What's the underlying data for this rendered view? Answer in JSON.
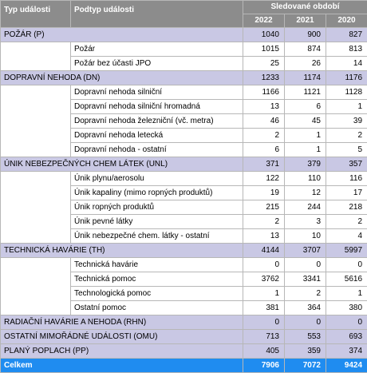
{
  "header": {
    "col_type": "Typ události",
    "col_subtype": "Podtyp události",
    "period": "Sledované období",
    "years": [
      "2022",
      "2021",
      "2020"
    ]
  },
  "rows": [
    {
      "kind": "cat",
      "name": "POŽÁR (P)",
      "values": [
        "1040",
        "900",
        "827"
      ]
    },
    {
      "kind": "sub",
      "name": "Požár",
      "values": [
        "1015",
        "874",
        "813"
      ]
    },
    {
      "kind": "sub",
      "name": "Požár bez účasti JPO",
      "values": [
        "25",
        "26",
        "14"
      ]
    },
    {
      "kind": "cat",
      "name": "DOPRAVNÍ NEHODA (DN)",
      "values": [
        "1233",
        "1174",
        "1176"
      ]
    },
    {
      "kind": "sub",
      "name": "Dopravní nehoda  silniční",
      "values": [
        "1166",
        "1121",
        "1128"
      ]
    },
    {
      "kind": "sub",
      "name": "Dopravní nehoda  silniční hromadná",
      "values": [
        "13",
        "6",
        "1"
      ]
    },
    {
      "kind": "sub",
      "name": "Dopravní nehoda  železniční (vč. metra)",
      "values": [
        "46",
        "45",
        "39"
      ]
    },
    {
      "kind": "sub",
      "name": "Dopravní nehoda  letecká",
      "values": [
        "2",
        "1",
        "2"
      ]
    },
    {
      "kind": "sub",
      "name": "Dopravní nehoda - ostatní",
      "values": [
        "6",
        "1",
        "5"
      ]
    },
    {
      "kind": "cat",
      "name": "ÚNIK  NEBEZPEČNÝCH CHEM LÁTEK (UNL)",
      "values": [
        "371",
        "379",
        "357"
      ]
    },
    {
      "kind": "sub",
      "name": "Únik plynu/aerosolu",
      "values": [
        "122",
        "110",
        "116"
      ]
    },
    {
      "kind": "sub",
      "name": "Únik kapaliny (mimo ropných produktů)",
      "values": [
        "19",
        "12",
        "17"
      ]
    },
    {
      "kind": "sub",
      "name": "Únik ropných produktů",
      "values": [
        "215",
        "244",
        "218"
      ]
    },
    {
      "kind": "sub",
      "name": "Únik pevné látky",
      "values": [
        "2",
        "3",
        "2"
      ]
    },
    {
      "kind": "sub",
      "name": "Únik nebezpečné chem. látky - ostatní",
      "values": [
        "13",
        "10",
        "4"
      ]
    },
    {
      "kind": "cat",
      "name": "TECHNICKÁ HAVÁRIE (TH)",
      "values": [
        "4144",
        "3707",
        "5997"
      ]
    },
    {
      "kind": "sub",
      "name": "Technická havárie",
      "values": [
        "0",
        "0",
        "0"
      ]
    },
    {
      "kind": "sub",
      "name": "Technická pomoc",
      "values": [
        "3762",
        "3341",
        "5616"
      ]
    },
    {
      "kind": "sub",
      "name": "Technologická pomoc",
      "values": [
        "1",
        "2",
        "1"
      ]
    },
    {
      "kind": "sub",
      "name": "Ostatní pomoc",
      "values": [
        "381",
        "364",
        "380"
      ]
    },
    {
      "kind": "cat",
      "name": "RADIAČNÍ HAVÁRIE A NEHODA (RHN)",
      "values": [
        "0",
        "0",
        "0"
      ]
    },
    {
      "kind": "cat",
      "name": "OSTATNÍ MIMOŘÁDNÉ UDÁLOSTI (OMU)",
      "values": [
        "713",
        "553",
        "693"
      ]
    },
    {
      "kind": "cat",
      "name": "PLANÝ POPLACH (PP)",
      "values": [
        "405",
        "359",
        "374"
      ]
    },
    {
      "kind": "total",
      "name": "Celkem",
      "values": [
        "7906",
        "7072",
        "9424"
      ]
    }
  ],
  "colors": {
    "header_bg": "#8c8c8c",
    "category_bg": "#c9c8e4",
    "total_bg": "#1f8cf0"
  }
}
